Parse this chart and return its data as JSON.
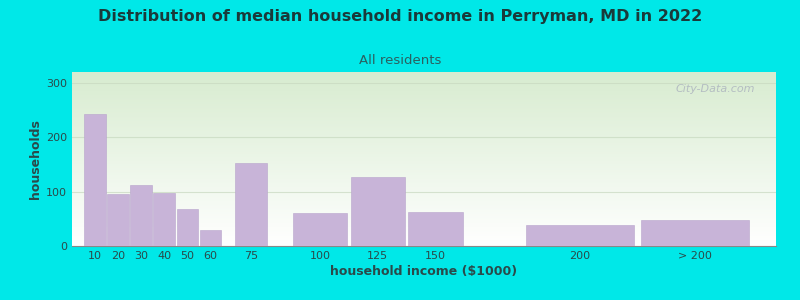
{
  "title": "Distribution of median household income in Perryman, MD in 2022",
  "subtitle": "All residents",
  "xlabel": "household income ($1000)",
  "ylabel": "households",
  "title_fontsize": 11.5,
  "subtitle_fontsize": 9.5,
  "label_fontsize": 9,
  "tick_fontsize": 8,
  "bar_color": "#c8b4d8",
  "bar_edgecolor": "#b8a4cc",
  "background_color": "#00e8e8",
  "title_color": "#1a3a3a",
  "subtitle_color": "#2a6060",
  "axis_label_color": "#2a4a4a",
  "tick_color": "#2a4a4a",
  "watermark_text": "City-Data.com",
  "watermark_color": "#b0b8c0",
  "categories": [
    "10",
    "20",
    "30",
    "40",
    "50",
    "60",
    "75",
    "100",
    "125",
    "150",
    "200",
    "> 200"
  ],
  "values": [
    243,
    95,
    112,
    97,
    68,
    30,
    153,
    60,
    127,
    62,
    38,
    47
  ],
  "bar_left_edges": [
    10,
    20,
    30,
    40,
    50,
    60,
    75,
    100,
    125,
    150,
    200,
    250
  ],
  "bar_widths": [
    10,
    10,
    10,
    10,
    10,
    10,
    15,
    25,
    25,
    25,
    50,
    50
  ],
  "ylim": [
    0,
    320
  ],
  "yticks": [
    0,
    100,
    200,
    300
  ],
  "xlim_left": 5,
  "xlim_right": 310,
  "grid_color": "#c8d8c0",
  "grid_alpha": 0.7,
  "plot_bg_top_color": "#e8f5e0",
  "plot_bg_bottom_color": "#ffffff"
}
